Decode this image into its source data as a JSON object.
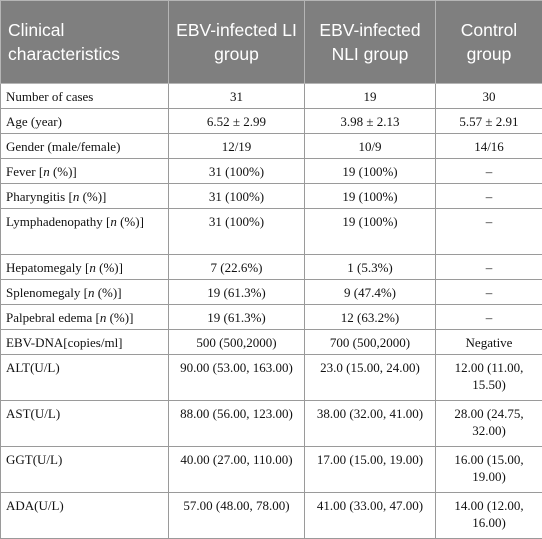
{
  "table": {
    "headers": [
      "Clinical characteristics",
      "EBV-infected LI group",
      "EBV-infected NLI group",
      "Control group"
    ],
    "rows": [
      {
        "label": "Number of cases",
        "li": "31",
        "nli": "19",
        "control": "30"
      },
      {
        "label": "Age (year)",
        "li": "6.52 ± 2.99",
        "nli": "3.98 ± 2.13",
        "control": "5.57 ± 2.91"
      },
      {
        "label": "Gender (male/female)",
        "li": "12/19",
        "nli": "10/9",
        "control": "14/16"
      },
      {
        "label": "Fever [n (%)]",
        "li": "31 (100%)",
        "nli": "19 (100%)",
        "control": "–"
      },
      {
        "label": "Pharyngitis [n (%)]",
        "li": "31 (100%)",
        "nli": "19 (100%)",
        "control": "–"
      },
      {
        "label": "Lymphadenopathy [n (%)]",
        "li": "31 (100%)",
        "nli": "19 (100%)",
        "control": "–"
      },
      {
        "label": "Hepatomegaly [n (%)]",
        "li": "7 (22.6%)",
        "nli": "1 (5.3%)",
        "control": "–"
      },
      {
        "label": "Splenomegaly [n (%)]",
        "li": "19 (61.3%)",
        "nli": "9 (47.4%)",
        "control": "–"
      },
      {
        "label": "Palpebral edema [n (%)]",
        "li": "19 (61.3%)",
        "nli": "12 (63.2%)",
        "control": "–"
      },
      {
        "label": "EBV-DNA[copies/ml]",
        "li": "500 (500,2000)",
        "nli": "700 (500,2000)",
        "control": "Negative"
      },
      {
        "label": "ALT(U/L)",
        "li": "90.00 (53.00, 163.00)",
        "nli": "23.0 (15.00, 24.00)",
        "control": "12.00 (11.00, 15.50)"
      },
      {
        "label": "AST(U/L)",
        "li": "88.00 (56.00, 123.00)",
        "nli": "38.00 (32.00, 41.00)",
        "control": "28.00 (24.75, 32.00)"
      },
      {
        "label": "GGT(U/L)",
        "li": "40.00 (27.00, 110.00)",
        "nli": "17.00 (15.00, 19.00)",
        "control": "16.00 (15.00, 19.00)"
      },
      {
        "label": "ADA(U/L)",
        "li": "57.00 (48.00, 78.00)",
        "nli": "41.00 (33.00, 47.00)",
        "control": "14.00 (12.00, 16.00)"
      }
    ]
  }
}
